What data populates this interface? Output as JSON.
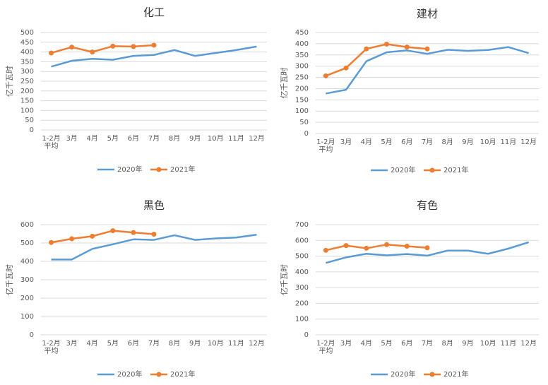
{
  "chart_data": [
    {
      "type": "line",
      "title": "化工",
      "y_label": "亿千瓦时",
      "categories": [
        "1-2月平均",
        "3月",
        "4月",
        "5月",
        "6月",
        "7月",
        "8月",
        "9月",
        "10月",
        "11月",
        "12月"
      ],
      "series": [
        {
          "name": "2020年",
          "color": "#5b9bd5",
          "markers": false,
          "values": [
            325,
            355,
            365,
            360,
            380,
            385,
            410,
            380,
            395,
            410,
            428
          ]
        },
        {
          "name": "2021年",
          "color": "#ed7d31",
          "markers": true,
          "values": [
            395,
            425,
            400,
            430,
            428,
            435,
            null,
            null,
            null,
            null,
            null
          ]
        }
      ],
      "ylim": [
        0,
        500
      ],
      "yticks": [
        0,
        50,
        100,
        150,
        200,
        250,
        300,
        350,
        400,
        450,
        500
      ],
      "grid": true,
      "legend": "bottom"
    },
    {
      "type": "line",
      "title": "建材",
      "y_label": "亿千瓦时",
      "categories": [
        "1-2月平均",
        "3月",
        "4月",
        "5月",
        "6月",
        "7月",
        "8月",
        "9月",
        "10月",
        "11月",
        "12月"
      ],
      "series": [
        {
          "name": "2020年",
          "color": "#5b9bd5",
          "markers": false,
          "values": [
            178,
            195,
            322,
            362,
            370,
            355,
            373,
            368,
            372,
            385,
            358
          ]
        },
        {
          "name": "2021年",
          "color": "#ed7d31",
          "markers": true,
          "values": [
            257,
            292,
            377,
            398,
            385,
            377,
            null,
            null,
            null,
            null,
            null
          ]
        }
      ],
      "ylim": [
        0,
        450
      ],
      "yticks": [
        0,
        50,
        100,
        150,
        200,
        250,
        300,
        350,
        400,
        450
      ],
      "grid": true,
      "legend": "bottom"
    },
    {
      "type": "line",
      "title": "黑色",
      "y_label": "亿千瓦时",
      "categories": [
        "1-2月平均",
        "3月",
        "4月",
        "5月",
        "6月",
        "7月",
        "8月",
        "9月",
        "10月",
        "11月",
        "12月"
      ],
      "series": [
        {
          "name": "2020年",
          "color": "#5b9bd5",
          "markers": false,
          "values": [
            410,
            410,
            468,
            493,
            520,
            517,
            542,
            517,
            525,
            530,
            545
          ]
        },
        {
          "name": "2021年",
          "color": "#ed7d31",
          "markers": true,
          "values": [
            503,
            523,
            537,
            567,
            557,
            548,
            null,
            null,
            null,
            null,
            null
          ]
        }
      ],
      "ylim": [
        0,
        600
      ],
      "yticks": [
        0,
        100,
        200,
        300,
        400,
        500,
        600
      ],
      "grid": true,
      "legend": "bottom"
    },
    {
      "type": "line",
      "title": "有色",
      "y_label": "亿千瓦时",
      "categories": [
        "1-2月平均",
        "3月",
        "4月",
        "5月",
        "6月",
        "7月",
        "8月",
        "9月",
        "10月",
        "11月",
        "12月"
      ],
      "series": [
        {
          "name": "2020年",
          "color": "#5b9bd5",
          "markers": false,
          "values": [
            457,
            492,
            515,
            505,
            513,
            503,
            535,
            535,
            515,
            548,
            588
          ]
        },
        {
          "name": "2021年",
          "color": "#ed7d31",
          "markers": true,
          "values": [
            537,
            567,
            550,
            573,
            563,
            553,
            null,
            null,
            null,
            null,
            null
          ]
        }
      ],
      "ylim": [
        0,
        700
      ],
      "yticks": [
        0,
        100,
        200,
        300,
        400,
        500,
        600,
        700
      ],
      "grid": true,
      "legend": "bottom"
    }
  ]
}
